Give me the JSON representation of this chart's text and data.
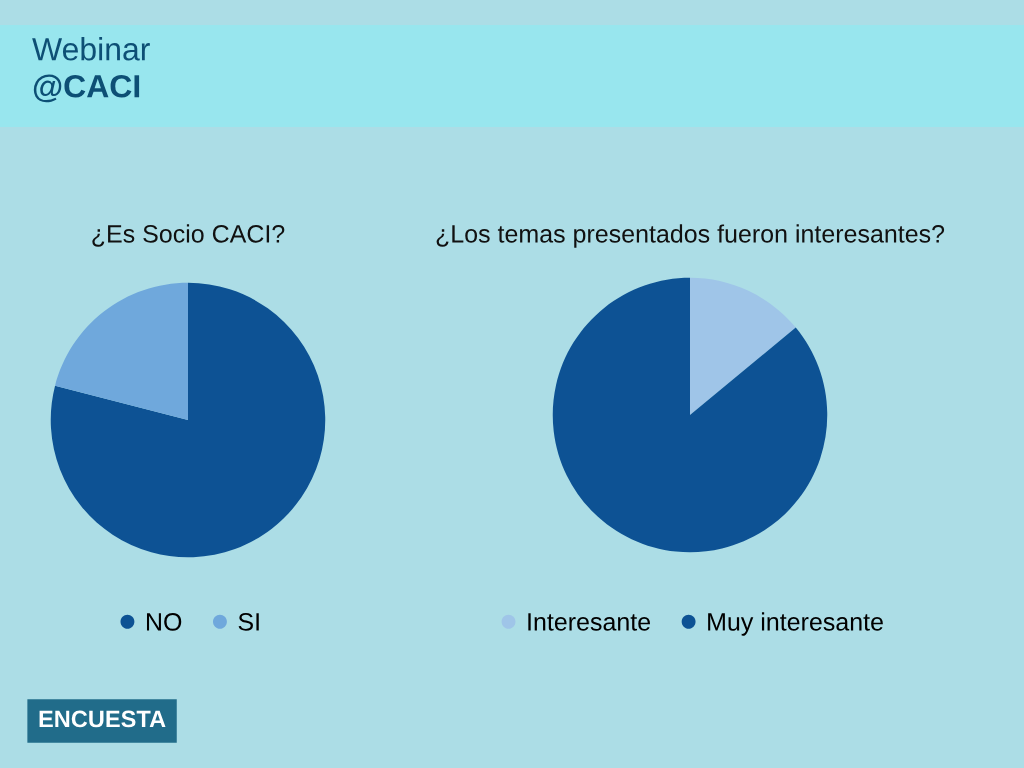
{
  "chart_data": [
    {
      "type": "other",
      "title": "Webinar",
      "subtitle": "@CACI",
      "annotations": [
        "ENCUESTA"
      ]
    },
    {
      "type": "pie",
      "title": "¿Es Socio CACI?",
      "categories": [
        "NO",
        "SI"
      ],
      "values": [
        79,
        21
      ],
      "colors": [
        "#0d5294",
        "#6fa8dc"
      ],
      "legend": "bottom"
    },
    {
      "type": "pie",
      "title": "¿Los temas presentados fueron interesantes?",
      "categories": [
        "Interesante",
        "Muy interesante"
      ],
      "values": [
        14,
        86
      ],
      "colors": [
        "#9fc5e8",
        "#0d5294"
      ],
      "legend": "bottom"
    }
  ]
}
